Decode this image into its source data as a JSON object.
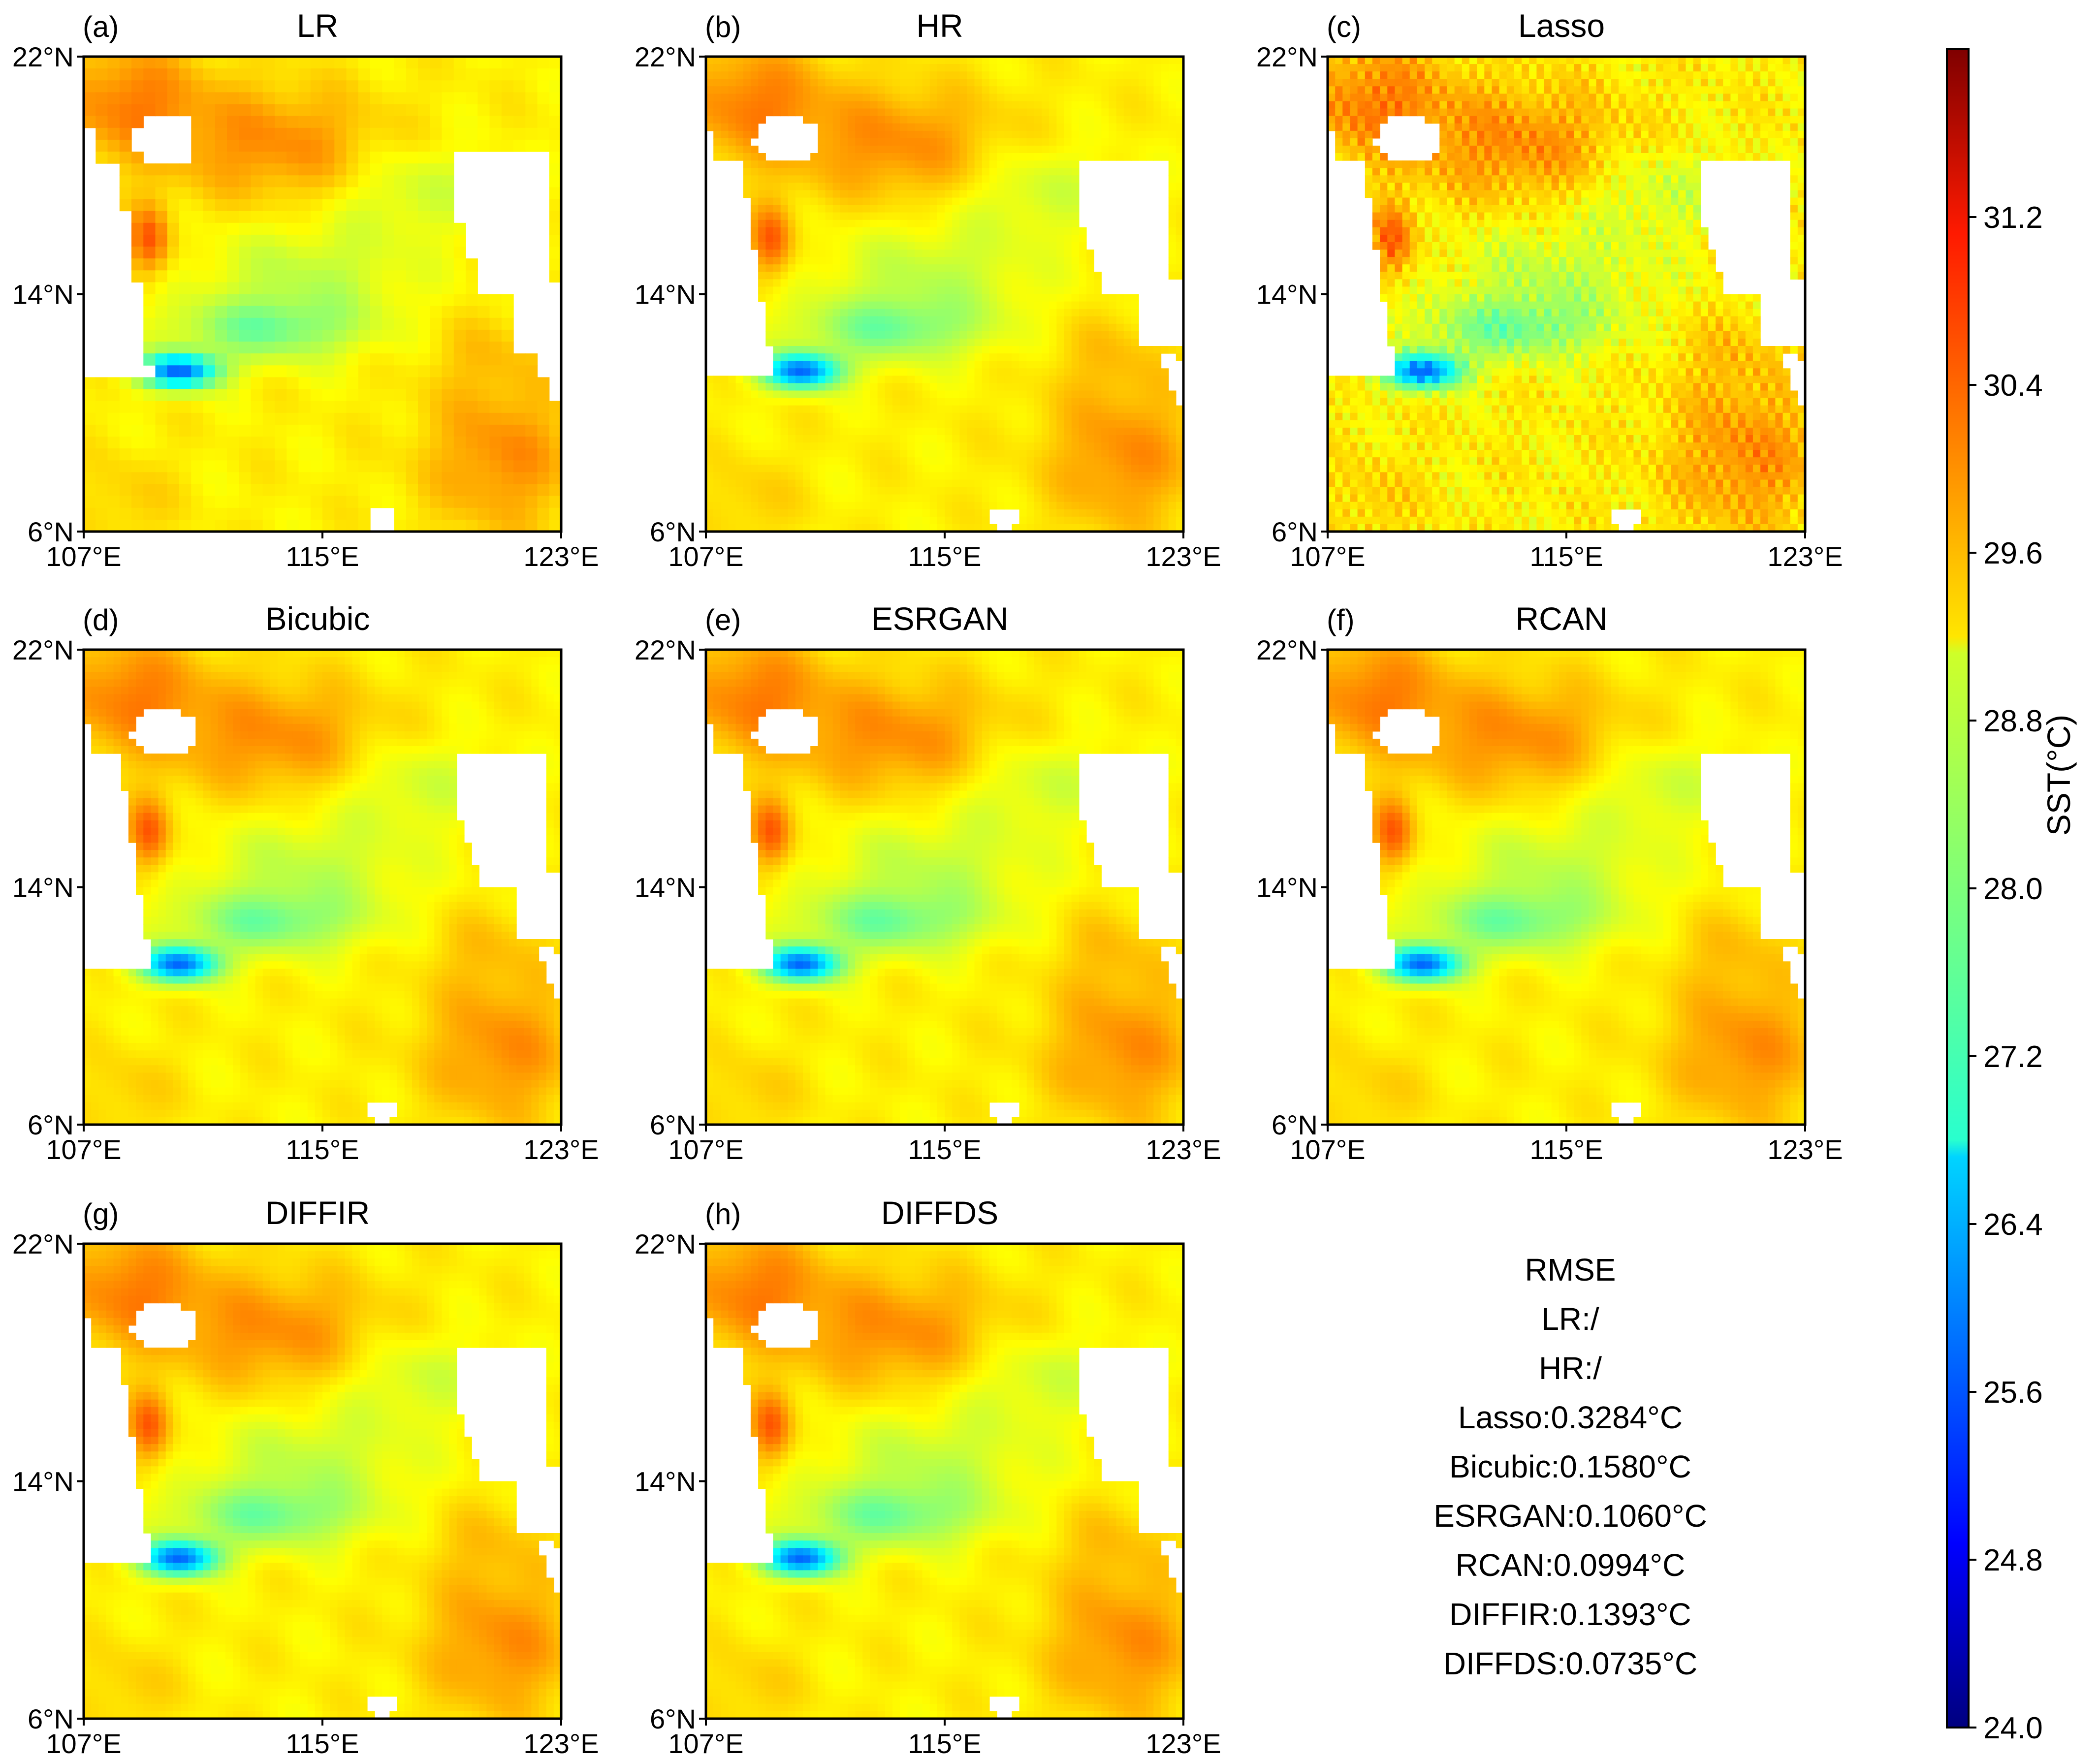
{
  "chart_data": {
    "type": "heatmap",
    "variable": "SST",
    "panels": [
      {
        "id": "a",
        "label": "(a)",
        "title": "LR"
      },
      {
        "id": "b",
        "label": "(b)",
        "title": "HR"
      },
      {
        "id": "c",
        "label": "(c)",
        "title": "Lasso"
      },
      {
        "id": "d",
        "label": "(d)",
        "title": "Bicubic"
      },
      {
        "id": "e",
        "label": "(e)",
        "title": "ESRGAN"
      },
      {
        "id": "f",
        "label": "(f)",
        "title": "RCAN"
      },
      {
        "id": "g",
        "label": "(g)",
        "title": "DIFFIR"
      },
      {
        "id": "h",
        "label": "(h)",
        "title": "DIFFDS"
      }
    ],
    "x_ticks": [
      "107°E",
      "115°E",
      "123°E"
    ],
    "y_ticks": [
      "22°N",
      "14°N",
      "6°N"
    ],
    "xlim": [
      107,
      123
    ],
    "ylim": [
      6,
      22
    ],
    "colorbar": {
      "label": "SST(°C)",
      "min": 24.0,
      "max": 32.0,
      "ticks": [
        "24.0",
        "24.8",
        "25.6",
        "26.4",
        "27.2",
        "28.0",
        "28.8",
        "29.6",
        "30.4",
        "31.2"
      ],
      "colormap": "jet"
    },
    "rmse": {
      "title": "RMSE",
      "lines": [
        "LR:/",
        "HR:/",
        "Lasso:0.3284°C",
        "Bicubic:0.1580°C",
        "ESRGAN:0.1060°C",
        "RCAN:0.0994°C",
        "DIFFIR:0.1393°C",
        "DIFFDS:0.0735°C"
      ]
    }
  }
}
